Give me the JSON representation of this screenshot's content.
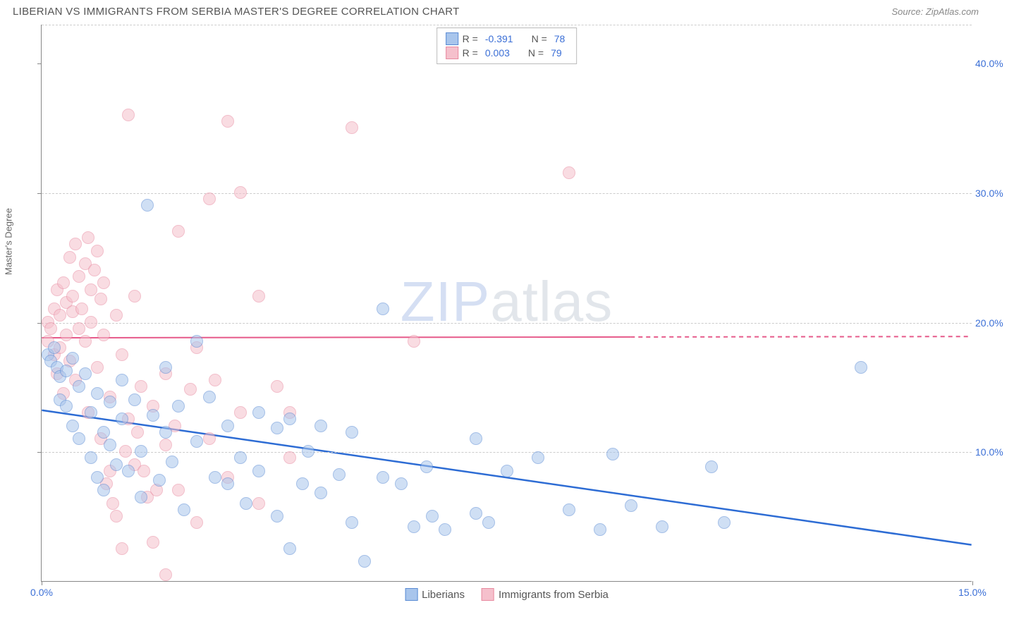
{
  "header": {
    "title": "LIBERIAN VS IMMIGRANTS FROM SERBIA MASTER'S DEGREE CORRELATION CHART",
    "source": "Source: ZipAtlas.com"
  },
  "watermark": {
    "part1": "ZIP",
    "part2": "atlas"
  },
  "chart": {
    "type": "scatter",
    "y_axis_label": "Master's Degree",
    "xlim": [
      0,
      15
    ],
    "ylim": [
      0,
      43
    ],
    "x_ticks": [
      {
        "value": 0,
        "label": "0.0%"
      },
      {
        "value": 15,
        "label": "15.0%"
      }
    ],
    "y_ticks": [
      {
        "value": 10,
        "label": "10.0%"
      },
      {
        "value": 20,
        "label": "20.0%"
      },
      {
        "value": 30,
        "label": "30.0%"
      },
      {
        "value": 40,
        "label": "40.0%"
      }
    ],
    "y_grid": [
      10,
      20,
      30,
      43
    ],
    "background_color": "#ffffff",
    "grid_color": "#cccccc",
    "grid_dash": "4,4",
    "point_radius": 9,
    "point_opacity": 0.55,
    "series": [
      {
        "name": "Liberians",
        "marker_fill": "#a8c5ec",
        "marker_stroke": "#5a8bd4",
        "trend": {
          "y_start": 13.2,
          "y_end": 2.8,
          "color": "#2d6cd4",
          "width": 2.5,
          "solid_until_x": 15
        },
        "points": [
          [
            0.1,
            17.5
          ],
          [
            0.15,
            17.0
          ],
          [
            0.2,
            18.0
          ],
          [
            0.25,
            16.5
          ],
          [
            0.3,
            15.8
          ],
          [
            0.3,
            14.0
          ],
          [
            0.4,
            16.2
          ],
          [
            0.4,
            13.5
          ],
          [
            0.5,
            17.2
          ],
          [
            0.5,
            12.0
          ],
          [
            0.6,
            15.0
          ],
          [
            0.6,
            11.0
          ],
          [
            0.7,
            16.0
          ],
          [
            0.8,
            13.0
          ],
          [
            0.8,
            9.5
          ],
          [
            0.9,
            14.5
          ],
          [
            0.9,
            8.0
          ],
          [
            1.0,
            11.5
          ],
          [
            1.0,
            7.0
          ],
          [
            1.1,
            13.8
          ],
          [
            1.1,
            10.5
          ],
          [
            1.2,
            9.0
          ],
          [
            1.3,
            15.5
          ],
          [
            1.3,
            12.5
          ],
          [
            1.4,
            8.5
          ],
          [
            1.5,
            14.0
          ],
          [
            1.6,
            10.0
          ],
          [
            1.6,
            6.5
          ],
          [
            1.7,
            29.0
          ],
          [
            1.8,
            12.8
          ],
          [
            1.9,
            7.8
          ],
          [
            2.0,
            16.5
          ],
          [
            2.0,
            11.5
          ],
          [
            2.1,
            9.2
          ],
          [
            2.2,
            13.5
          ],
          [
            2.3,
            5.5
          ],
          [
            2.5,
            18.5
          ],
          [
            2.5,
            10.8
          ],
          [
            2.7,
            14.2
          ],
          [
            2.8,
            8.0
          ],
          [
            3.0,
            7.5
          ],
          [
            3.0,
            12.0
          ],
          [
            3.2,
            9.5
          ],
          [
            3.3,
            6.0
          ],
          [
            3.5,
            13.0
          ],
          [
            3.5,
            8.5
          ],
          [
            3.8,
            11.8
          ],
          [
            3.8,
            5.0
          ],
          [
            4.0,
            12.5
          ],
          [
            4.2,
            7.5
          ],
          [
            4.3,
            10.0
          ],
          [
            4.5,
            12.0
          ],
          [
            4.5,
            6.8
          ],
          [
            4.8,
            8.2
          ],
          [
            5.0,
            11.5
          ],
          [
            5.0,
            4.5
          ],
          [
            5.2,
            1.5
          ],
          [
            5.5,
            8.0
          ],
          [
            5.5,
            21.0
          ],
          [
            5.8,
            7.5
          ],
          [
            6.0,
            4.2
          ],
          [
            6.2,
            8.8
          ],
          [
            6.3,
            5.0
          ],
          [
            6.5,
            4.0
          ],
          [
            7.0,
            11.0
          ],
          [
            7.0,
            5.2
          ],
          [
            7.2,
            4.5
          ],
          [
            7.5,
            8.5
          ],
          [
            8.0,
            9.5
          ],
          [
            8.5,
            5.5
          ],
          [
            9.0,
            4.0
          ],
          [
            9.2,
            9.8
          ],
          [
            9.5,
            5.8
          ],
          [
            10.0,
            4.2
          ],
          [
            10.8,
            8.8
          ],
          [
            11.0,
            4.5
          ],
          [
            13.2,
            16.5
          ],
          [
            4.0,
            2.5
          ]
        ]
      },
      {
        "name": "Immigrants from Serbia",
        "marker_fill": "#f5c0cc",
        "marker_stroke": "#e88aa0",
        "trend": {
          "y_start": 18.8,
          "y_end": 18.9,
          "color": "#e65a8a",
          "width": 2,
          "solid_until_x": 9.5
        },
        "points": [
          [
            0.1,
            18.5
          ],
          [
            0.1,
            20.0
          ],
          [
            0.15,
            19.5
          ],
          [
            0.2,
            21.0
          ],
          [
            0.2,
            17.5
          ],
          [
            0.25,
            22.5
          ],
          [
            0.25,
            16.0
          ],
          [
            0.3,
            20.5
          ],
          [
            0.3,
            18.0
          ],
          [
            0.35,
            23.0
          ],
          [
            0.35,
            14.5
          ],
          [
            0.4,
            19.0
          ],
          [
            0.4,
            21.5
          ],
          [
            0.45,
            25.0
          ],
          [
            0.45,
            17.0
          ],
          [
            0.5,
            20.8
          ],
          [
            0.5,
            22.0
          ],
          [
            0.55,
            26.0
          ],
          [
            0.55,
            15.5
          ],
          [
            0.6,
            19.5
          ],
          [
            0.6,
            23.5
          ],
          [
            0.65,
            21.0
          ],
          [
            0.7,
            24.5
          ],
          [
            0.7,
            18.5
          ],
          [
            0.75,
            26.5
          ],
          [
            0.75,
            13.0
          ],
          [
            0.8,
            22.5
          ],
          [
            0.8,
            20.0
          ],
          [
            0.85,
            24.0
          ],
          [
            0.9,
            25.5
          ],
          [
            0.9,
            16.5
          ],
          [
            0.95,
            21.8
          ],
          [
            1.0,
            23.0
          ],
          [
            1.0,
            19.0
          ],
          [
            1.1,
            14.2
          ],
          [
            1.1,
            8.5
          ],
          [
            1.2,
            20.5
          ],
          [
            1.2,
            5.0
          ],
          [
            1.3,
            17.5
          ],
          [
            1.3,
            2.5
          ],
          [
            1.4,
            36.0
          ],
          [
            1.4,
            12.5
          ],
          [
            1.5,
            22.0
          ],
          [
            1.5,
            9.0
          ],
          [
            1.6,
            15.0
          ],
          [
            1.7,
            6.5
          ],
          [
            1.8,
            13.5
          ],
          [
            1.8,
            3.0
          ],
          [
            2.0,
            16.0
          ],
          [
            2.0,
            10.5
          ],
          [
            2.0,
            0.5
          ],
          [
            2.2,
            27.0
          ],
          [
            2.2,
            7.0
          ],
          [
            2.4,
            14.8
          ],
          [
            2.5,
            18.0
          ],
          [
            2.5,
            4.5
          ],
          [
            2.7,
            29.5
          ],
          [
            2.7,
            11.0
          ],
          [
            2.8,
            15.5
          ],
          [
            3.0,
            8.0
          ],
          [
            3.0,
            35.5
          ],
          [
            3.2,
            30.0
          ],
          [
            3.2,
            13.0
          ],
          [
            3.5,
            22.0
          ],
          [
            3.5,
            6.0
          ],
          [
            3.8,
            15.0
          ],
          [
            4.0,
            9.5
          ],
          [
            4.0,
            13.0
          ],
          [
            5.0,
            35.0
          ],
          [
            6.0,
            18.5
          ],
          [
            8.5,
            31.5
          ],
          [
            1.15,
            6.0
          ],
          [
            0.95,
            11.0
          ],
          [
            1.05,
            7.5
          ],
          [
            1.35,
            10.0
          ],
          [
            1.55,
            11.5
          ],
          [
            1.65,
            8.5
          ],
          [
            1.85,
            7.0
          ],
          [
            2.15,
            12.0
          ]
        ]
      }
    ],
    "stats_legend": [
      {
        "series_index": 0,
        "r_label": "R =",
        "r_value": "-0.391",
        "n_label": "N =",
        "n_value": "78"
      },
      {
        "series_index": 1,
        "r_label": "R =",
        "r_value": "0.003",
        "n_label": "N =",
        "n_value": "79"
      }
    ]
  }
}
